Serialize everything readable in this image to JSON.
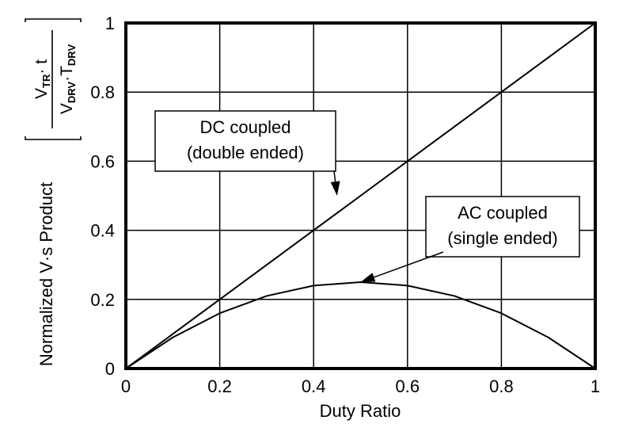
{
  "chart_data": {
    "type": "line",
    "title": "",
    "xlabel": "Duty Ratio",
    "ylabel": {
      "main": "Normalized V·s Product",
      "numerator": "V",
      "numerator_sub": "TR",
      "numerator_tail": "· t",
      "denominator_v": "V",
      "denominator_v_sub": "DRV",
      "denominator_t": "·T",
      "denominator_t_sub": "DRV"
    },
    "xlim": [
      0,
      1
    ],
    "ylim": [
      0,
      1
    ],
    "grid": true,
    "xticks": [
      "0",
      "0.2",
      "0.4",
      "0.6",
      "0.8",
      "1"
    ],
    "yticks": [
      "0",
      "0.2",
      "0.4",
      "0.6",
      "0.8",
      "1"
    ],
    "series": [
      {
        "x": [
          0,
          0.1,
          0.2,
          0.3,
          0.4,
          0.5,
          0.6,
          0.7,
          0.8,
          0.9,
          1.0
        ],
        "y": [
          0,
          0.1,
          0.2,
          0.3,
          0.4,
          0.5,
          0.6,
          0.7,
          0.8,
          0.9,
          1.0
        ]
      },
      {
        "x": [
          0,
          0.1,
          0.2,
          0.3,
          0.4,
          0.5,
          0.6,
          0.7,
          0.8,
          0.9,
          1.0
        ],
        "y": [
          0,
          0.09,
          0.16,
          0.21,
          0.24,
          0.25,
          0.24,
          0.21,
          0.16,
          0.09,
          0
        ]
      }
    ],
    "annotations": [
      {
        "lines": [
          "DC coupled",
          "(double ended)"
        ],
        "target": [
          0.45,
          0.5
        ]
      },
      {
        "lines": [
          "AC coupled",
          "(single ended)"
        ],
        "target": [
          0.5,
          0.25
        ]
      }
    ],
    "colors": {
      "line": "#000000",
      "grid": "#000000",
      "background": "#ffffff"
    }
  }
}
